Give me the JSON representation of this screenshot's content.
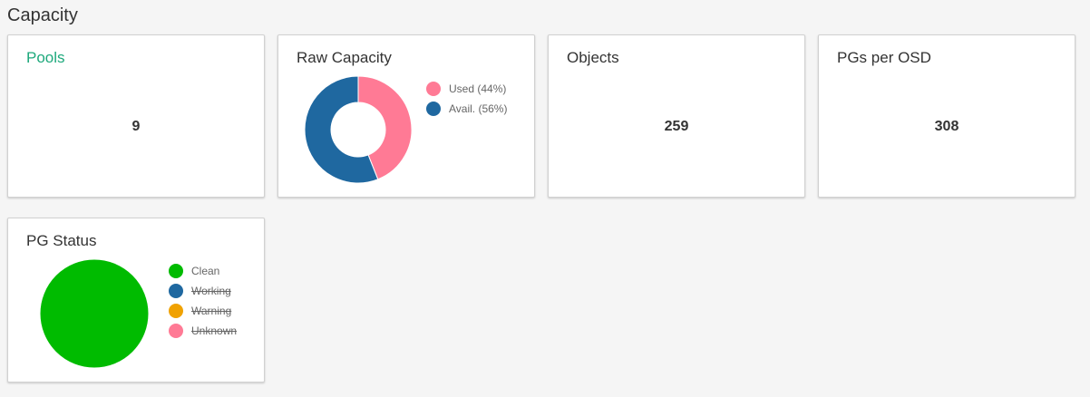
{
  "section": {
    "title": "Capacity"
  },
  "cards": {
    "pools": {
      "title": "Pools",
      "value": "9"
    },
    "raw_capacity": {
      "title": "Raw Capacity"
    },
    "objects": {
      "title": "Objects",
      "value": "259"
    },
    "pgs_per_osd": {
      "title": "PGs per OSD",
      "value": "308"
    },
    "pg_status": {
      "title": "PG Status"
    }
  },
  "chart_data": [
    {
      "type": "pie",
      "variant": "doughnut",
      "title": "Raw Capacity",
      "legend_position": "right",
      "slices": [
        {
          "label": "Used (44%)",
          "value": 44,
          "color": "#ff7a95",
          "visible": true
        },
        {
          "label": "Avail. (56%)",
          "value": 56,
          "color": "#1f68a0",
          "visible": true
        }
      ]
    },
    {
      "type": "pie",
      "title": "PG Status",
      "legend_position": "right",
      "slices": [
        {
          "label": "Clean",
          "value": 100,
          "color": "#00bb00",
          "visible": true
        },
        {
          "label": "Working",
          "value": 0,
          "color": "#1f68a0",
          "visible": false
        },
        {
          "label": "Warning",
          "value": 0,
          "color": "#f0a202",
          "visible": false
        },
        {
          "label": "Unknown",
          "value": 0,
          "color": "#ff7a95",
          "visible": false
        }
      ]
    }
  ]
}
